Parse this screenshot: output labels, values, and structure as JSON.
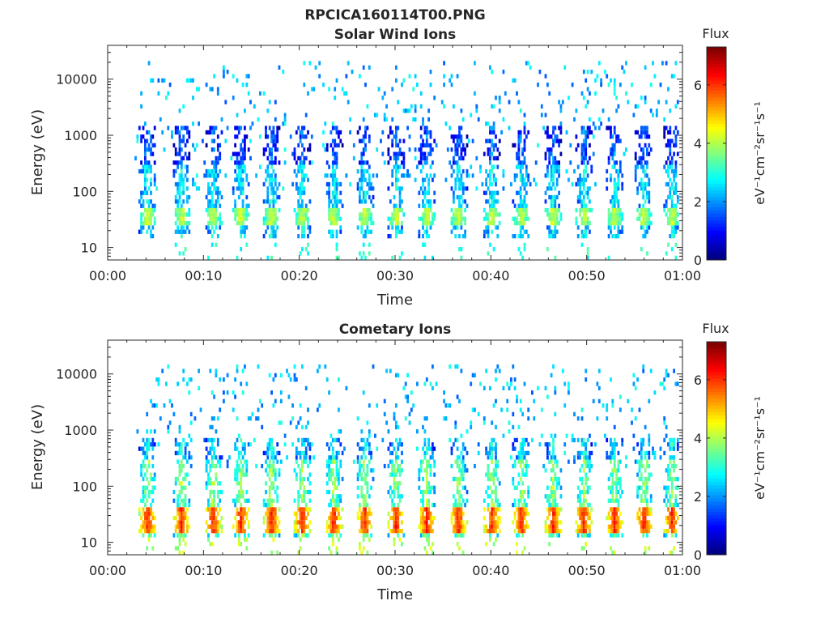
{
  "figure": {
    "title": "RPCICA160114T00.PNG"
  },
  "chart_data": [
    {
      "type": "heatmap",
      "title": "Solar Wind Ions",
      "xlabel": "Time",
      "ylabel": "Energy (eV)",
      "x_ticks": [
        "00:00",
        "00:10",
        "00:20",
        "00:30",
        "00:40",
        "00:50",
        "01:00"
      ],
      "y_ticks": [
        "10",
        "100",
        "1000",
        "10000"
      ],
      "y_scale": "log",
      "ylim": [
        6,
        40000
      ],
      "xlim_minutes": [
        0,
        60
      ],
      "colorbar": {
        "title": "Flux",
        "label": "eV⁻¹cm⁻²sr⁻¹s⁻¹",
        "ticks": [
          "0",
          "2",
          "4",
          "6"
        ],
        "range": [
          0,
          7.3
        ]
      },
      "burst_times_minutes": [
        4.1,
        7.6,
        10.9,
        13.8,
        17.0,
        20.2,
        23.5,
        26.7,
        30.0,
        33.2,
        36.5,
        40.0,
        43.1,
        46.4,
        49.6,
        52.8,
        55.9,
        58.8
      ],
      "energy_bands_eV": {
        "scatter_range": [
          100,
          20000
        ],
        "burst_core": [
          15,
          1500
        ],
        "strong_band": [
          25,
          50
        ]
      },
      "typical_flux": 2.5,
      "peak_flux": 4.0
    },
    {
      "type": "heatmap",
      "title": "Cometary Ions",
      "xlabel": "Time",
      "ylabel": "Energy (eV)",
      "x_ticks": [
        "00:00",
        "00:10",
        "00:20",
        "00:30",
        "00:40",
        "00:50",
        "01:00"
      ],
      "y_ticks": [
        "10",
        "100",
        "1000",
        "10000"
      ],
      "y_scale": "log",
      "ylim": [
        6,
        40000
      ],
      "xlim_minutes": [
        0,
        60
      ],
      "colorbar": {
        "title": "Flux",
        "label": "eV⁻¹cm⁻²sr⁻¹s⁻¹",
        "ticks": [
          "0",
          "2",
          "4",
          "6"
        ],
        "range": [
          0,
          7.3
        ]
      },
      "burst_times_minutes": [
        4.1,
        7.6,
        10.9,
        13.8,
        17.0,
        20.2,
        23.5,
        26.7,
        30.0,
        33.2,
        36.5,
        40.0,
        43.1,
        46.4,
        49.6,
        52.8,
        55.9,
        58.8
      ],
      "energy_bands_eV": {
        "scatter_range": [
          200,
          15000
        ],
        "burst_core": [
          12,
          700
        ],
        "strong_band": [
          15,
          45
        ]
      },
      "typical_flux": 3.5,
      "peak_flux": 5.8
    }
  ]
}
